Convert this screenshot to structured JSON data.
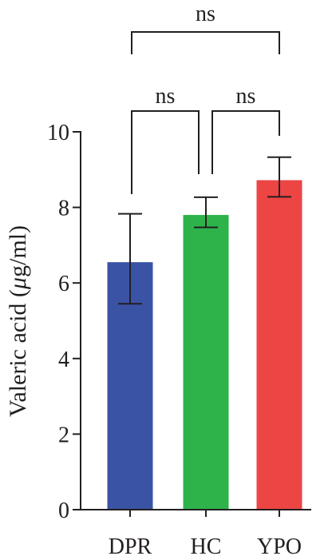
{
  "chart_data": {
    "type": "bar",
    "categories": [
      "DPR",
      "HC",
      "YPO"
    ],
    "values": [
      6.55,
      7.8,
      8.72
    ],
    "errors": [
      {
        "low": 5.45,
        "high": 7.83
      },
      {
        "low": 7.47,
        "high": 8.27
      },
      {
        "low": 8.28,
        "high": 9.33
      }
    ],
    "colors": [
      "#3a53a4",
      "#2db34a",
      "#ed4444"
    ],
    "ylabel": "Valeric acid (μg/ml)",
    "ylabel_parts": {
      "before": "Valeric acid (",
      "mu": "μ",
      "after": "g/ml)"
    },
    "ylim": [
      0,
      10
    ],
    "yticks": [
      "0",
      "2",
      "4",
      "6",
      "8",
      "10"
    ],
    "significance": [
      {
        "from": "DPR",
        "to": "HC",
        "label": "ns"
      },
      {
        "from": "HC",
        "to": "YPO",
        "label": "ns"
      },
      {
        "from": "DPR",
        "to": "YPO",
        "label": "ns"
      }
    ]
  }
}
